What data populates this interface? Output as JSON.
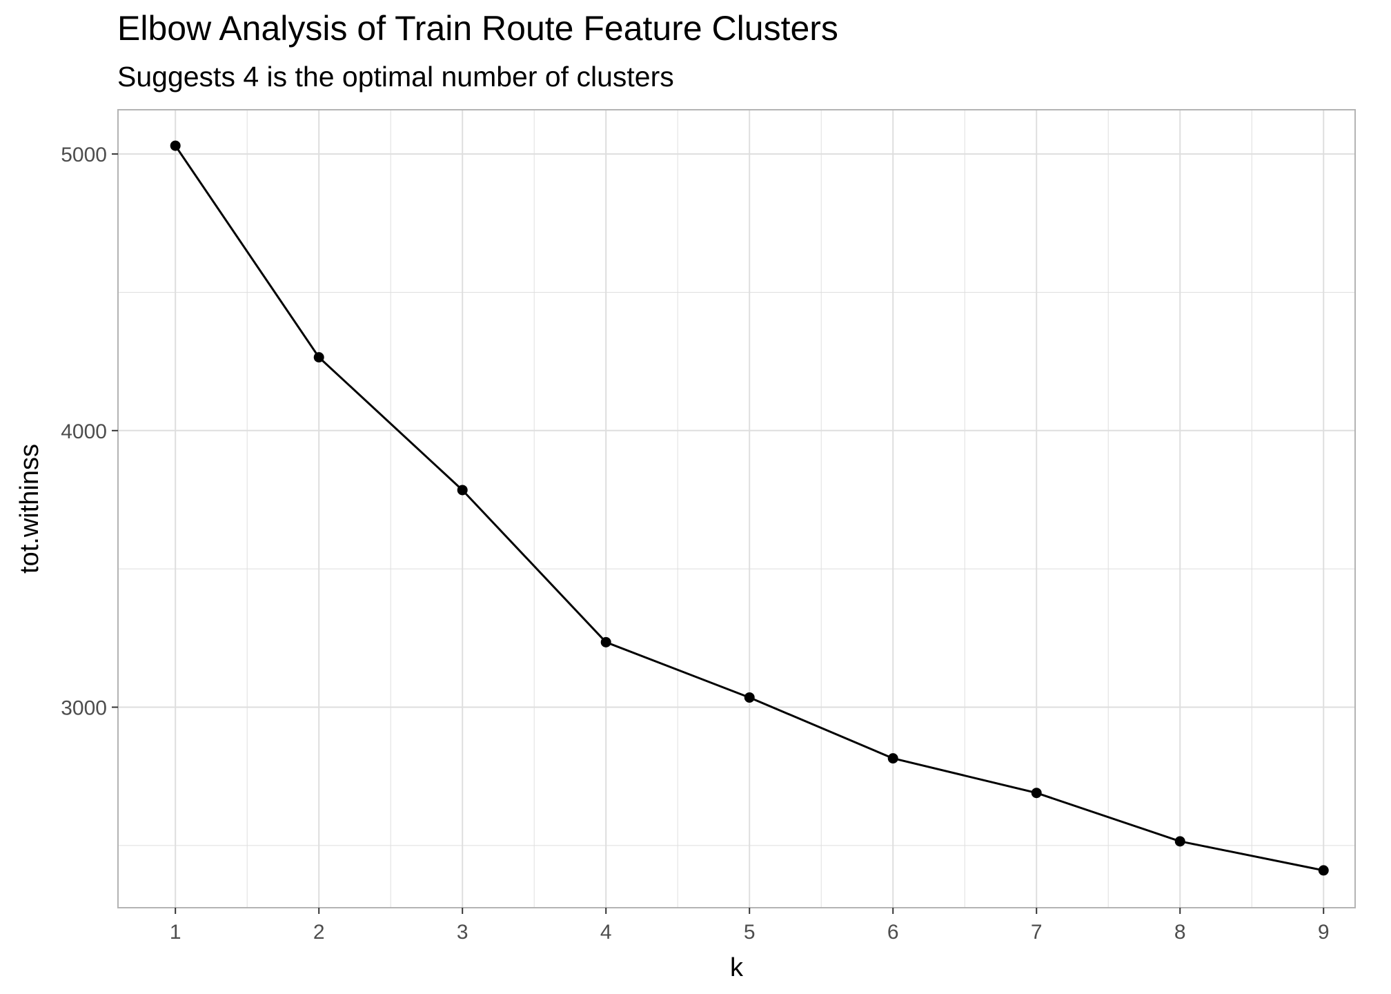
{
  "chart_data": {
    "type": "line",
    "title": "Elbow Analysis of Train Route Feature Clusters",
    "subtitle": "Suggests 4 is the optimal number of clusters",
    "xlabel": "k",
    "ylabel": "tot.withinss",
    "x": [
      1,
      2,
      3,
      4,
      5,
      6,
      7,
      8,
      9
    ],
    "y": [
      5030,
      4265,
      3785,
      3235,
      3035,
      2815,
      2690,
      2515,
      2410
    ],
    "xlim": [
      0.6,
      9.22
    ],
    "ylim": [
      2275,
      5160
    ],
    "xticks": [
      1,
      2,
      3,
      4,
      5,
      6,
      7,
      8,
      9
    ],
    "xtick_labels": [
      "1",
      "2",
      "3",
      "4",
      "5",
      "6",
      "7",
      "8",
      "9"
    ],
    "yticks": [
      3000,
      4000,
      5000
    ],
    "ytick_labels": [
      "3000",
      "4000",
      "5000"
    ],
    "y_minor_ticks": [
      2500,
      3500,
      4500
    ],
    "grid": true,
    "line_color": "#000000",
    "point_color": "#000000",
    "grid_color": "#dedede",
    "panel_border_color": "#b3b3b3"
  }
}
